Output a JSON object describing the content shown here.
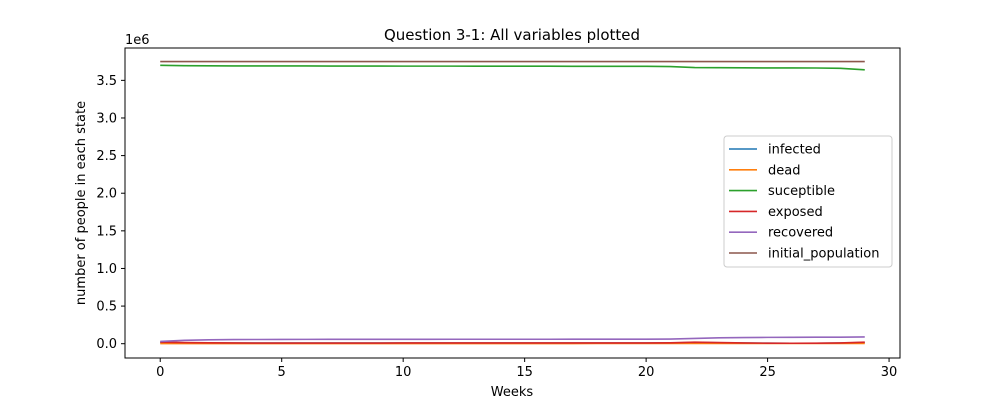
{
  "chart_data": {
    "type": "line",
    "title": "Question 3-1: All variables plotted",
    "xlabel": "Weeks",
    "ylabel": "number of people in each state",
    "y_offset_text": "1e6",
    "xlim": [
      -1.45,
      30.45
    ],
    "ylim": [
      -190000,
      3930000
    ],
    "x_ticks": [
      0,
      5,
      10,
      15,
      20,
      25,
      30
    ],
    "x_tick_labels": [
      "0",
      "5",
      "10",
      "15",
      "20",
      "25",
      "30"
    ],
    "y_ticks": [
      0,
      500000,
      1000000,
      1500000,
      2000000,
      2500000,
      3000000,
      3500000
    ],
    "y_tick_labels": [
      "0.0",
      "0.5",
      "1.0",
      "1.5",
      "2.0",
      "2.5",
      "3.0",
      "3.5"
    ],
    "grid": false,
    "legend_position": "center-right",
    "x": [
      0,
      1,
      2,
      3,
      4,
      5,
      6,
      7,
      8,
      9,
      10,
      11,
      12,
      13,
      14,
      15,
      16,
      17,
      18,
      19,
      20,
      21,
      22,
      23,
      24,
      25,
      26,
      27,
      28,
      29
    ],
    "series": [
      {
        "name": "infected",
        "color": "#1f77b4",
        "values": [
          15000,
          12000,
          10000,
          9000,
          8000,
          8000,
          8000,
          8000,
          8000,
          8000,
          9000,
          9000,
          9000,
          9000,
          9000,
          9000,
          9000,
          9000,
          9000,
          9000,
          9000,
          10000,
          15000,
          12000,
          9000,
          7000,
          6000,
          6000,
          8000,
          15000
        ]
      },
      {
        "name": "dead",
        "color": "#ff7f0e",
        "values": [
          1000,
          1500,
          1800,
          2000,
          2100,
          2200,
          2200,
          2300,
          2300,
          2300,
          2400,
          2400,
          2400,
          2500,
          2500,
          2500,
          2500,
          2500,
          2600,
          2600,
          2600,
          2700,
          3000,
          3200,
          3300,
          3400,
          3400,
          3400,
          3500,
          3600
        ]
      },
      {
        "name": "suceptible",
        "color": "#2ca02c",
        "values": [
          3700000,
          3695000,
          3693000,
          3692000,
          3692000,
          3691000,
          3691000,
          3690000,
          3690000,
          3690000,
          3689000,
          3689000,
          3689000,
          3688000,
          3688000,
          3688000,
          3688000,
          3687000,
          3687000,
          3687000,
          3686000,
          3683000,
          3670000,
          3668000,
          3666000,
          3665000,
          3665000,
          3664000,
          3660000,
          3640000
        ]
      },
      {
        "name": "exposed",
        "color": "#d62728",
        "values": [
          20000,
          15000,
          12000,
          10000,
          9000,
          9000,
          9000,
          9000,
          9000,
          9000,
          10000,
          10000,
          10000,
          10000,
          10000,
          10000,
          10000,
          10000,
          10000,
          10000,
          10000,
          12000,
          20000,
          15000,
          10000,
          7000,
          6000,
          7000,
          10000,
          20000
        ]
      },
      {
        "name": "recovered",
        "color": "#9467bd",
        "values": [
          30000,
          45000,
          52000,
          55000,
          56000,
          57000,
          57500,
          58000,
          58000,
          58000,
          58500,
          58500,
          59000,
          59000,
          59000,
          59000,
          59000,
          59500,
          59500,
          59500,
          60000,
          62000,
          70000,
          78000,
          82000,
          84000,
          85000,
          86000,
          87000,
          90000
        ]
      },
      {
        "name": "initial_population",
        "color": "#8c564b",
        "values": [
          3750000,
          3750000,
          3750000,
          3750000,
          3750000,
          3750000,
          3750000,
          3750000,
          3750000,
          3750000,
          3750000,
          3750000,
          3750000,
          3750000,
          3750000,
          3750000,
          3750000,
          3750000,
          3750000,
          3750000,
          3750000,
          3750000,
          3750000,
          3750000,
          3750000,
          3750000,
          3750000,
          3750000,
          3750000,
          3750000
        ]
      }
    ]
  }
}
